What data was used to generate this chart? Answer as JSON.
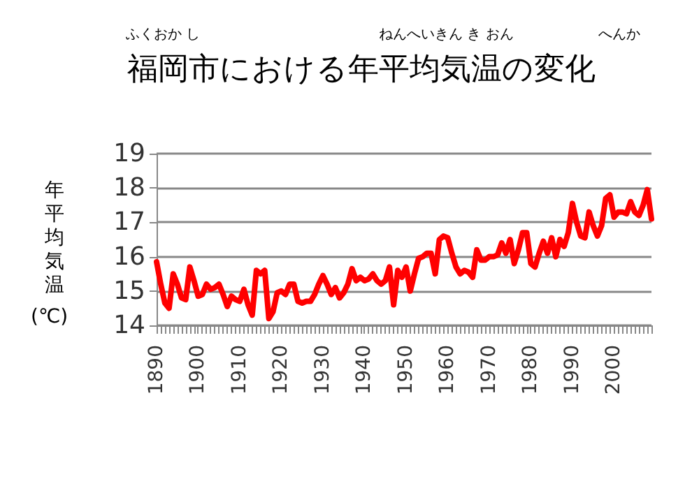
{
  "chart_data": {
    "type": "line",
    "title": "福岡市における年平均気温の変化",
    "ylabel": "年平均気温(℃)",
    "annotations": [
      "ふくおか し",
      "ねんへいきん き おん",
      "へんか"
    ],
    "categories": [
      "1890",
      null,
      null,
      null,
      null,
      null,
      null,
      null,
      null,
      null,
      "1900",
      null,
      null,
      null,
      null,
      null,
      null,
      null,
      null,
      null,
      "1910",
      null,
      null,
      null,
      null,
      null,
      null,
      null,
      null,
      null,
      "1920",
      null,
      null,
      null,
      null,
      null,
      null,
      null,
      null,
      null,
      "1930",
      null,
      null,
      null,
      null,
      null,
      null,
      null,
      null,
      null,
      "1940",
      null,
      null,
      null,
      null,
      null,
      null,
      null,
      null,
      null,
      "1950",
      null,
      null,
      null,
      null,
      null,
      null,
      null,
      null,
      null,
      "1960",
      null,
      null,
      null,
      null,
      null,
      null,
      null,
      null,
      null,
      "1970",
      null,
      null,
      null,
      null,
      null,
      null,
      null,
      null,
      null,
      "1980",
      null,
      null,
      null,
      null,
      null,
      null,
      null,
      null,
      null,
      "1990",
      null,
      null,
      null,
      null,
      null,
      null,
      null,
      null,
      null,
      "2000",
      null,
      null,
      null,
      null,
      null,
      null,
      null,
      null,
      null
    ],
    "series": [
      {
        "color": "#ff0000",
        "values": [
          15.85,
          15.2,
          14.65,
          14.5,
          15.5,
          15.2,
          14.8,
          14.75,
          15.7,
          15.3,
          14.85,
          14.9,
          15.2,
          15.05,
          15.1,
          15.2,
          14.9,
          14.55,
          14.85,
          14.75,
          14.7,
          15.05,
          14.6,
          14.3,
          15.6,
          15.5,
          15.6,
          14.2,
          14.4,
          14.95,
          15.0,
          14.9,
          15.2,
          15.2,
          14.7,
          14.65,
          14.7,
          14.7,
          14.9,
          15.2,
          15.45,
          15.2,
          14.9,
          15.1,
          14.8,
          14.95,
          15.2,
          15.65,
          15.3,
          15.4,
          15.3,
          15.35,
          15.5,
          15.3,
          15.2,
          15.3,
          15.7,
          14.6,
          15.6,
          15.4,
          15.7,
          15.0,
          15.5,
          15.95,
          16.0,
          16.1,
          16.1,
          15.5,
          16.5,
          16.6,
          16.55,
          16.1,
          15.7,
          15.5,
          15.6,
          15.55,
          15.4,
          16.2,
          15.9,
          15.9,
          16.0,
          16.0,
          16.05,
          16.4,
          16.1,
          16.5,
          15.8,
          16.2,
          16.7,
          16.7,
          15.8,
          15.7,
          16.1,
          16.45,
          16.1,
          16.55,
          16.0,
          16.5,
          16.3,
          16.7,
          17.55,
          17.0,
          16.6,
          16.55,
          17.3,
          16.9,
          16.6,
          16.9,
          17.7,
          17.8,
          17.15,
          17.3,
          17.3,
          17.25,
          17.6,
          17.3,
          17.2,
          17.5,
          17.95,
          17.1
        ]
      }
    ],
    "ylim": [
      14,
      19
    ],
    "yticks": [
      14,
      15,
      16,
      17,
      18,
      19
    ],
    "grid": "y",
    "marker": "none",
    "line_style": "solid"
  }
}
